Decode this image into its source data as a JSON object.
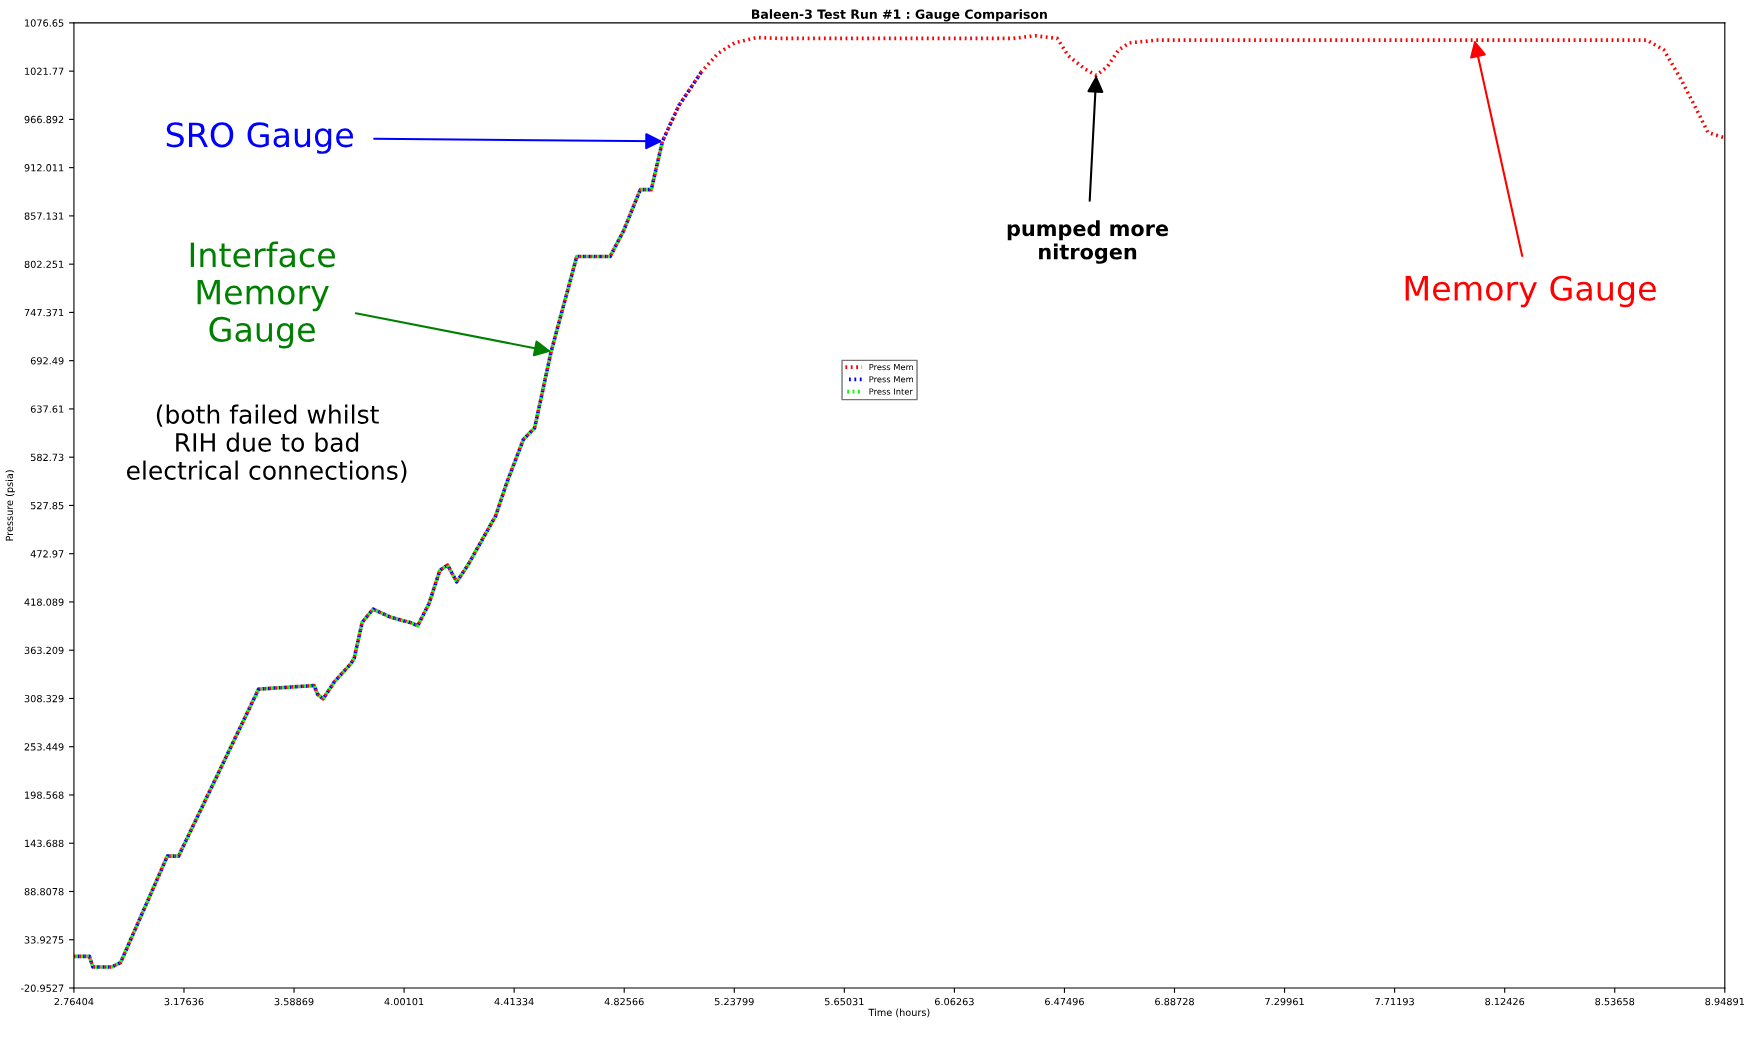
{
  "chart_data": {
    "type": "line",
    "title": "Baleen-3 Test Run #1 : Gauge Comparison",
    "xlabel": "Time (hours)",
    "ylabel": "Pressure (psia)",
    "x": [
      2.7641,
      2.822,
      2.835,
      2.906,
      2.939,
      3.114,
      3.156,
      3.456,
      3.664,
      3.677,
      3.698,
      3.739,
      3.802,
      3.814,
      3.844,
      3.885,
      3.948,
      4.031,
      4.052,
      4.094,
      4.135,
      4.164,
      4.198,
      4.24,
      4.344,
      4.385,
      4.448,
      4.49,
      4.552,
      4.648,
      4.773,
      4.823,
      4.886,
      4.927,
      4.969,
      5.031,
      5.115,
      5.177,
      5.24,
      5.323,
      5.406,
      6.282,
      6.365,
      6.448,
      6.49,
      6.553,
      6.594,
      6.636,
      6.678,
      6.719,
      6.823,
      7.49,
      8.657,
      8.72,
      8.782,
      8.845,
      8.886,
      8.948
    ],
    "series": [
      {
        "name": "Press Mem",
        "color": "#ff0000",
        "values": [
          15,
          15,
          3,
          3,
          8,
          129,
          129,
          319,
          323,
          313,
          308,
          327,
          348,
          354,
          395,
          410,
          401,
          394,
          391,
          416,
          454,
          460,
          441,
          460,
          516,
          553,
          603,
          616,
          703,
          811,
          811,
          840,
          887,
          887,
          942,
          983,
          1021,
          1042,
          1054,
          1060,
          1059,
          1059,
          1062,
          1059,
          1039,
          1024,
          1017,
          1027,
          1046,
          1054,
          1057,
          1057,
          1057,
          1046,
          1014,
          977,
          952,
          946
        ]
      },
      {
        "name": "Press Mem",
        "color": "#0000ff",
        "values": [
          15,
          15,
          3,
          3,
          8,
          129,
          129,
          319,
          323,
          313,
          308,
          327,
          348,
          354,
          395,
          410,
          401,
          394,
          391,
          416,
          454,
          460,
          441,
          460,
          516,
          553,
          603,
          616,
          703,
          811,
          811,
          840,
          887,
          887,
          942,
          983,
          1021,
          null,
          null,
          null,
          null,
          null,
          null,
          null,
          null,
          null,
          null,
          null,
          null,
          null,
          null,
          null,
          null,
          null,
          null,
          null,
          null,
          null
        ]
      },
      {
        "name": "Press Inter",
        "color": "#00ff00",
        "values": [
          15,
          15,
          3,
          3,
          8,
          129,
          129,
          319,
          323,
          313,
          308,
          327,
          348,
          354,
          395,
          410,
          401,
          394,
          391,
          416,
          454,
          460,
          441,
          460,
          516,
          553,
          603,
          616,
          703,
          811,
          811,
          840,
          887,
          887,
          942,
          null,
          null,
          null,
          null,
          null,
          null,
          null,
          null,
          null,
          null,
          null,
          null,
          null,
          null,
          null,
          null,
          null,
          null,
          null,
          null,
          null,
          null,
          null
        ]
      }
    ],
    "xlim": [
      2.76404,
      8.94891
    ],
    "xticks": [
      2.76404,
      3.17636,
      3.58869,
      4.00101,
      4.41334,
      4.82566,
      5.23799,
      5.65031,
      6.06263,
      6.47496,
      6.88728,
      7.29961,
      7.71193,
      8.12426,
      8.53658,
      8.94891
    ],
    "ylim": [
      -20.9527,
      1076.65
    ],
    "yticks": [
      -20.9527,
      33.9275,
      88.8078,
      143.688,
      198.568,
      253.449,
      308.329,
      363.209,
      418.089,
      472.97,
      527.85,
      582.73,
      637.61,
      692.49,
      747.371,
      802.251,
      857.131,
      912.011,
      966.892,
      1021.77,
      1076.65
    ],
    "annotations": [
      {
        "text": "SRO Gauge",
        "x": 4.969,
        "y": 942
      },
      {
        "text": "Interface\nMemory\nGauge",
        "x": 4.552,
        "y": 703
      },
      "(both failed whilst\nRIH due to bad\nelectrical connections)",
      {
        "text": "pumped more\nnitrogen",
        "x": 6.594,
        "y": 1017
      },
      {
        "text": "Memory Gauge",
        "x": 8.011,
        "y": 1057
      }
    ],
    "legend": "center",
    "grid": false,
    "line_style": "dotted",
    "marker": "none"
  }
}
